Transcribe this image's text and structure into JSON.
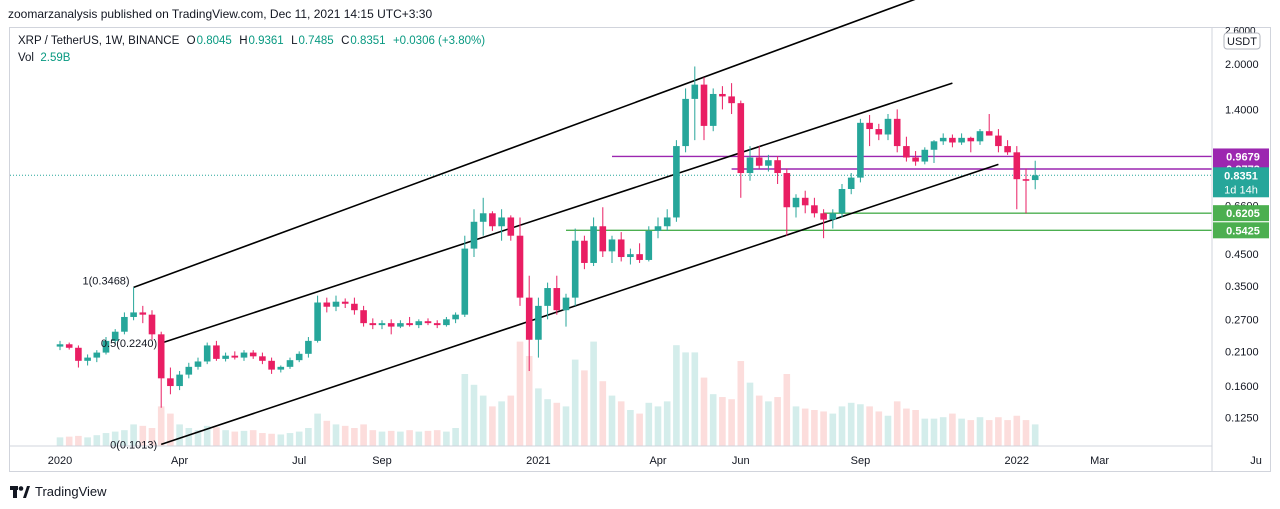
{
  "header": {
    "published_text": "zoomarzanalysis published on TradingView.com, Dec 11, 2021 14:15 UTC+3:30"
  },
  "legend": {
    "symbol": "XRP / TetherUS, 1W, BINANCE",
    "o_label": "O",
    "o": "0.8045",
    "h_label": "H",
    "h": "0.9361",
    "l_label": "L",
    "l": "0.7485",
    "c_label": "C",
    "c": "0.8351",
    "change": "+0.0306 (+3.80%)",
    "vol_label": "Vol",
    "vol": "2.59B"
  },
  "footer": {
    "brand": "TradingView"
  },
  "colors": {
    "up": "#26a69a",
    "down": "#e91e63",
    "channel": "#000000",
    "resistance": "#9c27b0",
    "support": "#4caf50"
  },
  "chart_data": {
    "type": "candlestick",
    "title": "XRP / TetherUS, 1W, BINANCE",
    "currency": "USDT",
    "y_scale": "log",
    "ylim": [
      0.1,
      2.65
    ],
    "y_ticks": [
      "2.0000",
      "1.4000",
      "0.9600",
      "0.6600",
      "0.4500",
      "0.3500",
      "0.2700",
      "0.2100",
      "0.1600",
      "0.1250"
    ],
    "y_top_tick": "2.6000",
    "x_ticks": [
      "2020",
      "Apr",
      "Jul",
      "Sep",
      "2021",
      "Apr",
      "Jun",
      "Sep",
      "2022",
      "Mar",
      "Ju"
    ],
    "x_tick_weeks": [
      0,
      13,
      26,
      35,
      52,
      65,
      74,
      87,
      104,
      113,
      130
    ],
    "candles": [
      {
        "o": 0.218,
        "h": 0.228,
        "l": 0.212,
        "c": 0.222
      },
      {
        "o": 0.222,
        "h": 0.225,
        "l": 0.213,
        "c": 0.216
      },
      {
        "o": 0.216,
        "h": 0.22,
        "l": 0.185,
        "c": 0.195
      },
      {
        "o": 0.195,
        "h": 0.205,
        "l": 0.188,
        "c": 0.2
      },
      {
        "o": 0.2,
        "h": 0.212,
        "l": 0.193,
        "c": 0.208
      },
      {
        "o": 0.208,
        "h": 0.235,
        "l": 0.205,
        "c": 0.228
      },
      {
        "o": 0.228,
        "h": 0.25,
        "l": 0.222,
        "c": 0.245
      },
      {
        "o": 0.245,
        "h": 0.285,
        "l": 0.24,
        "c": 0.275
      },
      {
        "o": 0.275,
        "h": 0.347,
        "l": 0.268,
        "c": 0.285
      },
      {
        "o": 0.285,
        "h": 0.3,
        "l": 0.262,
        "c": 0.28
      },
      {
        "o": 0.28,
        "h": 0.29,
        "l": 0.23,
        "c": 0.24
      },
      {
        "o": 0.24,
        "h": 0.245,
        "l": 0.135,
        "c": 0.17
      },
      {
        "o": 0.17,
        "h": 0.185,
        "l": 0.15,
        "c": 0.16
      },
      {
        "o": 0.16,
        "h": 0.18,
        "l": 0.155,
        "c": 0.175
      },
      {
        "o": 0.175,
        "h": 0.192,
        "l": 0.17,
        "c": 0.186
      },
      {
        "o": 0.186,
        "h": 0.2,
        "l": 0.182,
        "c": 0.194
      },
      {
        "o": 0.194,
        "h": 0.225,
        "l": 0.19,
        "c": 0.22
      },
      {
        "o": 0.22,
        "h": 0.228,
        "l": 0.195,
        "c": 0.198
      },
      {
        "o": 0.198,
        "h": 0.208,
        "l": 0.194,
        "c": 0.203
      },
      {
        "o": 0.203,
        "h": 0.21,
        "l": 0.197,
        "c": 0.2
      },
      {
        "o": 0.2,
        "h": 0.212,
        "l": 0.195,
        "c": 0.208
      },
      {
        "o": 0.208,
        "h": 0.212,
        "l": 0.198,
        "c": 0.202
      },
      {
        "o": 0.202,
        "h": 0.208,
        "l": 0.19,
        "c": 0.195
      },
      {
        "o": 0.195,
        "h": 0.2,
        "l": 0.176,
        "c": 0.182
      },
      {
        "o": 0.182,
        "h": 0.188,
        "l": 0.178,
        "c": 0.186
      },
      {
        "o": 0.186,
        "h": 0.2,
        "l": 0.183,
        "c": 0.196
      },
      {
        "o": 0.196,
        "h": 0.21,
        "l": 0.193,
        "c": 0.206
      },
      {
        "o": 0.206,
        "h": 0.235,
        "l": 0.2,
        "c": 0.228
      },
      {
        "o": 0.228,
        "h": 0.325,
        "l": 0.225,
        "c": 0.308
      },
      {
        "o": 0.308,
        "h": 0.32,
        "l": 0.285,
        "c": 0.298
      },
      {
        "o": 0.298,
        "h": 0.325,
        "l": 0.288,
        "c": 0.31
      },
      {
        "o": 0.31,
        "h": 0.318,
        "l": 0.295,
        "c": 0.305
      },
      {
        "o": 0.305,
        "h": 0.32,
        "l": 0.28,
        "c": 0.29
      },
      {
        "o": 0.29,
        "h": 0.3,
        "l": 0.255,
        "c": 0.262
      },
      {
        "o": 0.262,
        "h": 0.272,
        "l": 0.25,
        "c": 0.258
      },
      {
        "o": 0.258,
        "h": 0.268,
        "l": 0.25,
        "c": 0.262
      },
      {
        "o": 0.262,
        "h": 0.27,
        "l": 0.24,
        "c": 0.255
      },
      {
        "o": 0.255,
        "h": 0.268,
        "l": 0.252,
        "c": 0.262
      },
      {
        "o": 0.262,
        "h": 0.275,
        "l": 0.255,
        "c": 0.258
      },
      {
        "o": 0.258,
        "h": 0.27,
        "l": 0.252,
        "c": 0.266
      },
      {
        "o": 0.266,
        "h": 0.272,
        "l": 0.258,
        "c": 0.262
      },
      {
        "o": 0.262,
        "h": 0.268,
        "l": 0.252,
        "c": 0.258
      },
      {
        "o": 0.258,
        "h": 0.275,
        "l": 0.255,
        "c": 0.27
      },
      {
        "o": 0.27,
        "h": 0.285,
        "l": 0.262,
        "c": 0.28
      },
      {
        "o": 0.28,
        "h": 0.52,
        "l": 0.275,
        "c": 0.47
      },
      {
        "o": 0.47,
        "h": 0.64,
        "l": 0.44,
        "c": 0.58
      },
      {
        "o": 0.58,
        "h": 0.7,
        "l": 0.52,
        "c": 0.62
      },
      {
        "o": 0.62,
        "h": 0.63,
        "l": 0.54,
        "c": 0.56
      },
      {
        "o": 0.56,
        "h": 0.64,
        "l": 0.5,
        "c": 0.6
      },
      {
        "o": 0.6,
        "h": 0.61,
        "l": 0.5,
        "c": 0.52
      },
      {
        "o": 0.52,
        "h": 0.6,
        "l": 0.3,
        "c": 0.32
      },
      {
        "o": 0.32,
        "h": 0.38,
        "l": 0.18,
        "c": 0.23
      },
      {
        "o": 0.23,
        "h": 0.32,
        "l": 0.2,
        "c": 0.3
      },
      {
        "o": 0.3,
        "h": 0.36,
        "l": 0.27,
        "c": 0.345
      },
      {
        "o": 0.345,
        "h": 0.38,
        "l": 0.28,
        "c": 0.29
      },
      {
        "o": 0.29,
        "h": 0.33,
        "l": 0.255,
        "c": 0.32
      },
      {
        "o": 0.32,
        "h": 0.55,
        "l": 0.3,
        "c": 0.5
      },
      {
        "o": 0.5,
        "h": 0.52,
        "l": 0.4,
        "c": 0.42
      },
      {
        "o": 0.42,
        "h": 0.6,
        "l": 0.41,
        "c": 0.56
      },
      {
        "o": 0.56,
        "h": 0.65,
        "l": 0.44,
        "c": 0.46
      },
      {
        "o": 0.46,
        "h": 0.52,
        "l": 0.42,
        "c": 0.505
      },
      {
        "o": 0.505,
        "h": 0.535,
        "l": 0.425,
        "c": 0.44
      },
      {
        "o": 0.44,
        "h": 0.47,
        "l": 0.415,
        "c": 0.45
      },
      {
        "o": 0.45,
        "h": 0.49,
        "l": 0.42,
        "c": 0.43
      },
      {
        "o": 0.43,
        "h": 0.56,
        "l": 0.425,
        "c": 0.54
      },
      {
        "o": 0.54,
        "h": 0.6,
        "l": 0.51,
        "c": 0.56
      },
      {
        "o": 0.56,
        "h": 0.64,
        "l": 0.54,
        "c": 0.6
      },
      {
        "o": 0.6,
        "h": 1.1,
        "l": 0.58,
        "c": 1.05
      },
      {
        "o": 1.05,
        "h": 1.65,
        "l": 1.0,
        "c": 1.52
      },
      {
        "o": 1.52,
        "h": 1.96,
        "l": 1.1,
        "c": 1.7
      },
      {
        "o": 1.7,
        "h": 1.8,
        "l": 1.1,
        "c": 1.23
      },
      {
        "o": 1.23,
        "h": 1.65,
        "l": 1.18,
        "c": 1.58
      },
      {
        "o": 1.58,
        "h": 1.68,
        "l": 1.4,
        "c": 1.55
      },
      {
        "o": 1.55,
        "h": 1.72,
        "l": 1.35,
        "c": 1.47
      },
      {
        "o": 1.47,
        "h": 1.5,
        "l": 0.7,
        "c": 0.85
      },
      {
        "o": 0.85,
        "h": 1.05,
        "l": 0.8,
        "c": 0.96
      },
      {
        "o": 0.96,
        "h": 1.05,
        "l": 0.88,
        "c": 0.9
      },
      {
        "o": 0.9,
        "h": 0.98,
        "l": 0.86,
        "c": 0.94
      },
      {
        "o": 0.94,
        "h": 0.97,
        "l": 0.78,
        "c": 0.85
      },
      {
        "o": 0.85,
        "h": 0.88,
        "l": 0.52,
        "c": 0.65
      },
      {
        "o": 0.65,
        "h": 0.72,
        "l": 0.6,
        "c": 0.7
      },
      {
        "o": 0.7,
        "h": 0.74,
        "l": 0.62,
        "c": 0.66
      },
      {
        "o": 0.66,
        "h": 0.7,
        "l": 0.6,
        "c": 0.62
      },
      {
        "o": 0.62,
        "h": 0.64,
        "l": 0.51,
        "c": 0.59
      },
      {
        "o": 0.59,
        "h": 0.64,
        "l": 0.55,
        "c": 0.62
      },
      {
        "o": 0.62,
        "h": 0.78,
        "l": 0.6,
        "c": 0.75
      },
      {
        "o": 0.75,
        "h": 0.85,
        "l": 0.72,
        "c": 0.82
      },
      {
        "o": 0.82,
        "h": 1.3,
        "l": 0.79,
        "c": 1.26
      },
      {
        "o": 1.26,
        "h": 1.34,
        "l": 1.05,
        "c": 1.2
      },
      {
        "o": 1.2,
        "h": 1.25,
        "l": 1.1,
        "c": 1.15
      },
      {
        "o": 1.15,
        "h": 1.35,
        "l": 1.1,
        "c": 1.3
      },
      {
        "o": 1.3,
        "h": 1.4,
        "l": 1.0,
        "c": 1.05
      },
      {
        "o": 1.05,
        "h": 1.13,
        "l": 0.93,
        "c": 0.96
      },
      {
        "o": 0.96,
        "h": 1.01,
        "l": 0.9,
        "c": 0.93
      },
      {
        "o": 0.93,
        "h": 1.04,
        "l": 0.91,
        "c": 1.02
      },
      {
        "o": 1.02,
        "h": 1.1,
        "l": 0.92,
        "c": 1.09
      },
      {
        "o": 1.09,
        "h": 1.16,
        "l": 1.06,
        "c": 1.12
      },
      {
        "o": 1.12,
        "h": 1.15,
        "l": 1.04,
        "c": 1.08
      },
      {
        "o": 1.08,
        "h": 1.16,
        "l": 1.06,
        "c": 1.12
      },
      {
        "o": 1.12,
        "h": 1.13,
        "l": 1.0,
        "c": 1.09
      },
      {
        "o": 1.09,
        "h": 1.2,
        "l": 1.06,
        "c": 1.18
      },
      {
        "o": 1.18,
        "h": 1.35,
        "l": 1.15,
        "c": 1.14
      },
      {
        "o": 1.14,
        "h": 1.2,
        "l": 1.0,
        "c": 1.05
      },
      {
        "o": 1.05,
        "h": 1.1,
        "l": 0.98,
        "c": 1.0
      },
      {
        "o": 1.0,
        "h": 1.05,
        "l": 0.64,
        "c": 0.81
      },
      {
        "o": 0.81,
        "h": 0.88,
        "l": 0.62,
        "c": 0.8
      },
      {
        "o": 0.8045,
        "h": 0.9361,
        "l": 0.7485,
        "c": 0.8351
      }
    ],
    "volume_label": "Vol",
    "volume": [
      0.12,
      0.13,
      0.14,
      0.12,
      0.15,
      0.18,
      0.2,
      0.22,
      0.3,
      0.28,
      0.25,
      0.55,
      0.45,
      0.3,
      0.25,
      0.22,
      0.28,
      0.26,
      0.22,
      0.2,
      0.21,
      0.22,
      0.18,
      0.17,
      0.16,
      0.18,
      0.2,
      0.25,
      0.45,
      0.35,
      0.3,
      0.28,
      0.25,
      0.3,
      0.22,
      0.2,
      0.21,
      0.2,
      0.22,
      0.2,
      0.21,
      0.22,
      0.2,
      0.25,
      1.0,
      0.85,
      0.7,
      0.55,
      0.62,
      0.7,
      1.45,
      1.25,
      0.8,
      0.65,
      0.6,
      0.55,
      1.2,
      1.05,
      1.45,
      0.9,
      0.7,
      0.62,
      0.5,
      0.45,
      0.6,
      0.55,
      0.62,
      1.4,
      1.3,
      1.3,
      0.95,
      0.72,
      0.68,
      0.65,
      1.18,
      0.88,
      0.7,
      0.62,
      0.68,
      1.0,
      0.55,
      0.52,
      0.5,
      0.48,
      0.45,
      0.55,
      0.6,
      0.58,
      0.55,
      0.48,
      0.42,
      0.62,
      0.52,
      0.5,
      0.38,
      0.38,
      0.4,
      0.45,
      0.38,
      0.36,
      0.4,
      0.36,
      0.4,
      0.36,
      0.42,
      0.36,
      0.3
    ],
    "lines": [
      {
        "name": "channel-upper",
        "from": {
          "week": 8,
          "price": 0.3468
        },
        "to": {
          "week": 96,
          "price": 3.6
        }
      },
      {
        "name": "channel-middle",
        "from": {
          "week": 11,
          "price": 0.224
        },
        "to": {
          "week": 97,
          "price": 1.72
        }
      },
      {
        "name": "channel-lower",
        "from": {
          "week": 11,
          "price": 0.1013
        },
        "to": {
          "week": 102,
          "price": 0.91
        }
      }
    ],
    "fib_labels": [
      "1(0.3468)",
      "0.5(0.2240)",
      "0(0.1013)"
    ],
    "levels": [
      {
        "label": "0.9679",
        "price": 0.9679,
        "color": "#9c27b0",
        "from_week": 60
      },
      {
        "label": "0.8773",
        "price": 0.8773,
        "color": "#9c27b0",
        "from_week": 73
      },
      {
        "label": "0.6205",
        "price": 0.6205,
        "color": "#4caf50",
        "from_week": 83
      },
      {
        "label": "0.5425",
        "price": 0.5425,
        "color": "#4caf50",
        "from_week": 55
      }
    ],
    "last_price": {
      "label": "0.8351",
      "countdown": "1d 14h",
      "price": 0.8351
    }
  }
}
